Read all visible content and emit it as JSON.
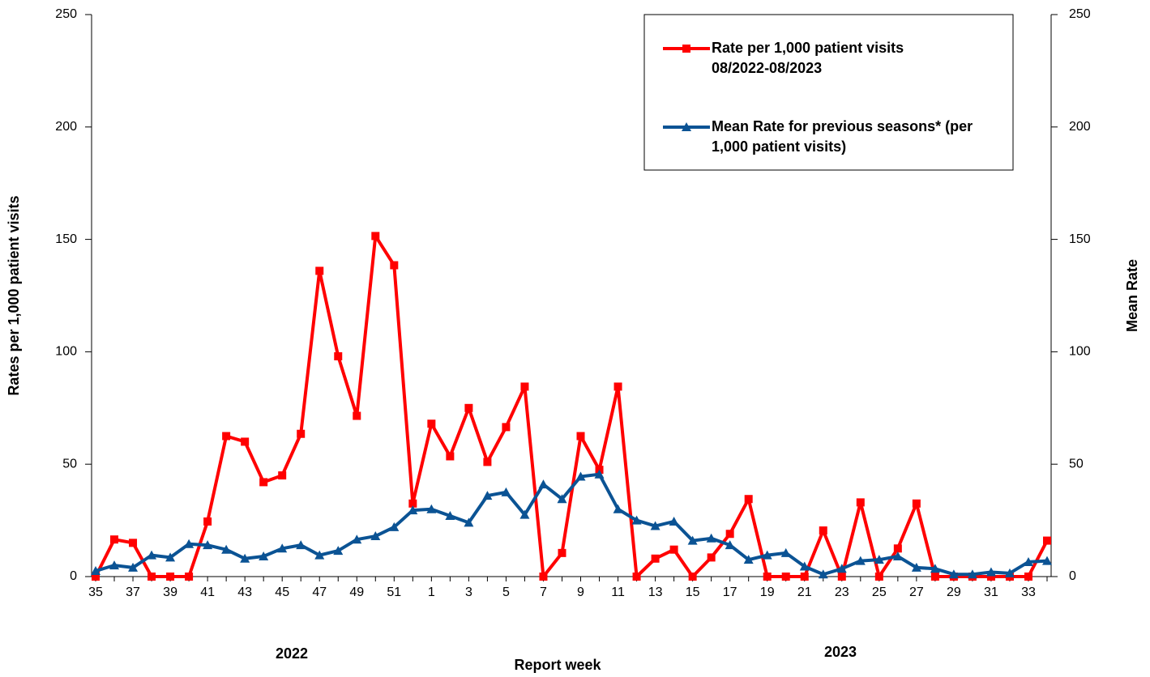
{
  "chart_data": {
    "type": "line",
    "categories": [
      "35",
      null,
      "37",
      null,
      "39",
      null,
      "41",
      null,
      "43",
      null,
      "45",
      null,
      "47",
      null,
      "49",
      null,
      "51",
      null,
      "1",
      null,
      "3",
      null,
      "5",
      null,
      "7",
      null,
      "9",
      null,
      "11",
      null,
      "13",
      null,
      "15",
      null,
      "17",
      null,
      "19",
      null,
      "21",
      null,
      "23",
      null,
      "25",
      null,
      "27",
      null,
      "29",
      null,
      "31",
      null,
      "33",
      null
    ],
    "series": [
      {
        "name": "Rate per 1,000 patient visits 08/2022-08/2023",
        "color": "#ff0000",
        "marker": "square",
        "values": [
          0,
          16.5,
          15,
          0,
          0,
          0,
          24.5,
          62.5,
          60,
          42,
          45,
          63.5,
          136,
          98,
          71.5,
          151.5,
          138.5,
          32.5,
          68,
          53.5,
          75,
          51,
          66.5,
          84.5,
          0,
          10.5,
          62.5,
          47.5,
          84.5,
          0,
          8,
          12,
          0,
          8.5,
          19,
          34.5,
          0,
          0,
          0,
          20.5,
          0,
          33,
          0,
          12.5,
          32.5,
          0,
          0,
          0,
          0,
          0,
          0,
          16
        ]
      },
      {
        "name": "Mean Rate for previous seasons* (per 1,000 patient visits)",
        "color": "#0b5394",
        "marker": "triangle",
        "axis": "y2",
        "values": [
          2.5,
          5,
          4,
          9.5,
          8.5,
          14.5,
          14,
          12,
          8,
          9,
          12.5,
          14,
          9.5,
          11.5,
          16.5,
          18,
          22,
          29.5,
          30,
          27,
          24,
          36,
          37.5,
          27.5,
          41,
          34.5,
          44.5,
          45.5,
          30,
          25,
          22.5,
          24.5,
          16,
          17,
          14,
          7.5,
          9.5,
          10.5,
          4.5,
          1,
          3.5,
          7,
          7.5,
          9,
          4,
          3.5,
          1,
          1,
          2,
          1.5,
          6.5,
          7
        ]
      }
    ],
    "ylabel": "Rates per 1,000 patient visits",
    "y2label": "Mean Rate",
    "xlabel": "Report week",
    "annotations": [
      "2022",
      "2023"
    ],
    "ylim": [
      0,
      250
    ],
    "yticks": [
      0,
      50,
      100,
      150,
      200,
      250
    ],
    "y2lim": [
      0,
      250
    ],
    "y2ticks": [
      0,
      50,
      100,
      150,
      200,
      250
    ],
    "legend": "top-right"
  }
}
